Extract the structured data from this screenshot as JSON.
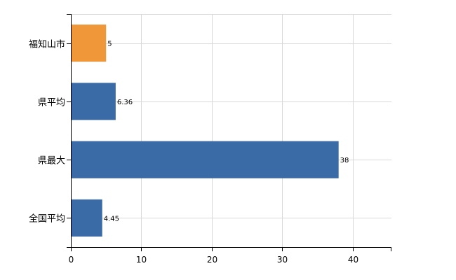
{
  "chart_data": {
    "type": "bar",
    "orientation": "horizontal",
    "categories": [
      "福知山市",
      "県平均",
      "県最大",
      "全国平均"
    ],
    "values": [
      5,
      6.36,
      38,
      4.45
    ],
    "data_labels": [
      "5",
      "6.36",
      "38",
      "4.45"
    ],
    "colors": [
      "#f0973a",
      "#3a6ba7",
      "#3a6ba7",
      "#3a6ba7"
    ],
    "x_ticks": [
      0,
      10,
      20,
      30,
      40
    ],
    "x_tick_labels": [
      "0",
      "10",
      "20",
      "30",
      "40"
    ],
    "xlim": [
      0,
      45.5
    ],
    "grid": true,
    "title": "",
    "xlabel": "",
    "ylabel": ""
  }
}
